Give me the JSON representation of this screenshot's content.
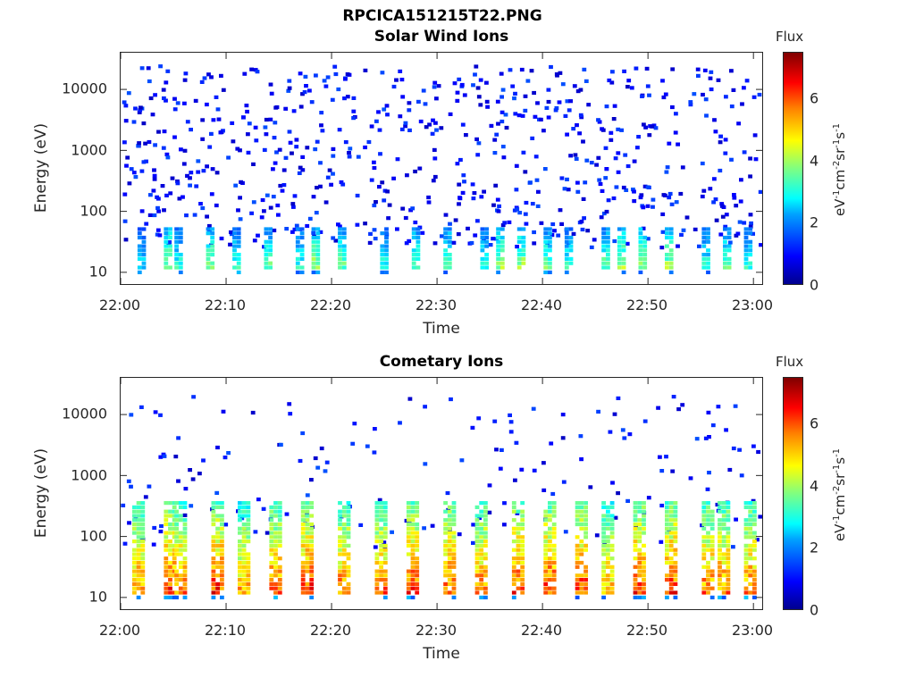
{
  "page": {
    "title": "RPCICA151215T22.PNG"
  },
  "colors": {
    "background": "#ffffff",
    "axis": "#262626"
  },
  "chart_data": [
    {
      "type": "heatmap",
      "title": "Solar Wind Ions",
      "xlabel": "Time",
      "ylabel": "Energy (eV)",
      "yscale": "log",
      "ylim": [
        6,
        40000
      ],
      "xlim": [
        "22:00",
        "23:01"
      ],
      "x_ticks": [
        "22:00",
        "22:10",
        "22:20",
        "22:30",
        "22:40",
        "22:50",
        "23:00"
      ],
      "y_ticks": [
        "10",
        "100",
        "1000",
        "10000"
      ],
      "colorbar": {
        "label": "Flux",
        "unit": "eV-1cm-2sr-1s-1",
        "range": [
          0,
          7.5
        ],
        "ticks": [
          "0",
          "2",
          "4",
          "6"
        ]
      },
      "bursts_minutes": [
        2,
        4.5,
        5.5,
        8.5,
        11,
        14,
        17,
        18.5,
        21,
        25,
        28,
        31,
        34.5,
        36,
        38,
        40.5,
        42.5,
        46,
        47.5,
        49.5,
        52,
        55.5,
        57.5,
        59.5
      ],
      "burst_peak_flux": [
        3,
        4.5,
        3.5,
        4.5,
        3.5,
        4,
        3.5,
        4.5,
        4,
        3.5,
        4,
        4,
        3.5,
        4.5,
        4.5,
        4,
        3.5,
        4,
        4.5,
        4.5,
        4.5,
        3.5,
        4,
        3.5
      ]
    },
    {
      "type": "heatmap",
      "title": "Cometary Ions",
      "xlabel": "Time",
      "ylabel": "Energy (eV)",
      "yscale": "log",
      "ylim": [
        6,
        40000
      ],
      "xlim": [
        "22:00",
        "23:01"
      ],
      "x_ticks": [
        "22:00",
        "22:10",
        "22:20",
        "22:30",
        "22:40",
        "22:50",
        "23:00"
      ],
      "y_ticks": [
        "10",
        "100",
        "1000",
        "10000"
      ],
      "colorbar": {
        "label": "Flux",
        "unit": "eV-1cm-2sr-1s-1",
        "range": [
          0,
          7.5
        ],
        "ticks": [
          "0",
          "2",
          "4",
          "6"
        ]
      },
      "bursts_minutes": [
        1.5,
        4.5,
        5.5,
        9,
        11.5,
        14.5,
        17.5,
        21,
        24.5,
        27.5,
        31,
        34,
        37.5,
        40.5,
        43.5,
        46,
        49,
        52,
        55.5,
        57,
        59.5
      ],
      "burst_peak_flux": [
        6.5,
        7,
        6.5,
        7,
        6,
        6.5,
        7,
        6.5,
        6.5,
        7,
        7,
        6.5,
        7,
        7,
        7,
        6,
        7,
        7,
        6.5,
        6.5,
        6.5
      ]
    }
  ]
}
